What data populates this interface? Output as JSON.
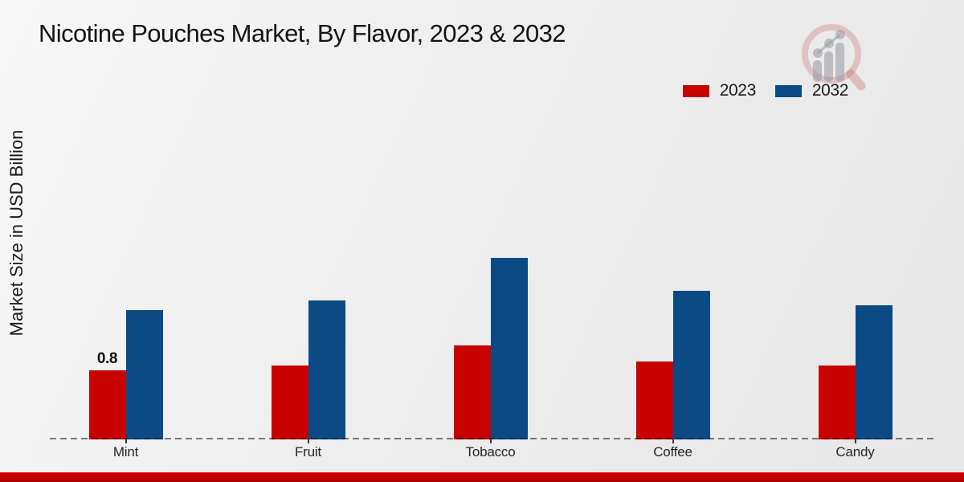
{
  "title": "Nicotine Pouches Market, By Flavor, 2023 & 2032",
  "y_axis_label": "Market Size in USD Billion",
  "legend": {
    "items": [
      {
        "label": "2023",
        "color": "#c80101"
      },
      {
        "label": "2032",
        "color": "#0b4a85"
      }
    ],
    "position": "top-right"
  },
  "watermark_icon": "magnifier-bar-chart-logo",
  "colors": {
    "series_2023": "#c80101",
    "series_2032": "#0b4a85",
    "footer_strip": "#c40000",
    "baseline": "#4a4a4a",
    "background": "#ededed"
  },
  "chart_data": {
    "type": "bar",
    "title": "Nicotine Pouches Market, By Flavor, 2023 & 2032",
    "categories": [
      "Mint",
      "Fruit",
      "Tobacco",
      "Coffee",
      "Candy"
    ],
    "series": [
      {
        "name": "2023",
        "color": "#c80101",
        "values": [
          0.8,
          0.86,
          1.09,
          0.9,
          0.86
        ]
      },
      {
        "name": "2032",
        "color": "#0b4a85",
        "values": [
          1.5,
          1.61,
          2.1,
          1.72,
          1.55
        ]
      }
    ],
    "data_labels": [
      {
        "series_index": 0,
        "category_index": 0,
        "text": "0.8"
      }
    ],
    "xlabel": "",
    "ylabel": "Market Size in USD Billion",
    "ylim": [
      0,
      2.6
    ],
    "grid": false,
    "y_axis_ticks_visible": false,
    "legend_position": "top-right",
    "baseline_style": "dashed"
  }
}
